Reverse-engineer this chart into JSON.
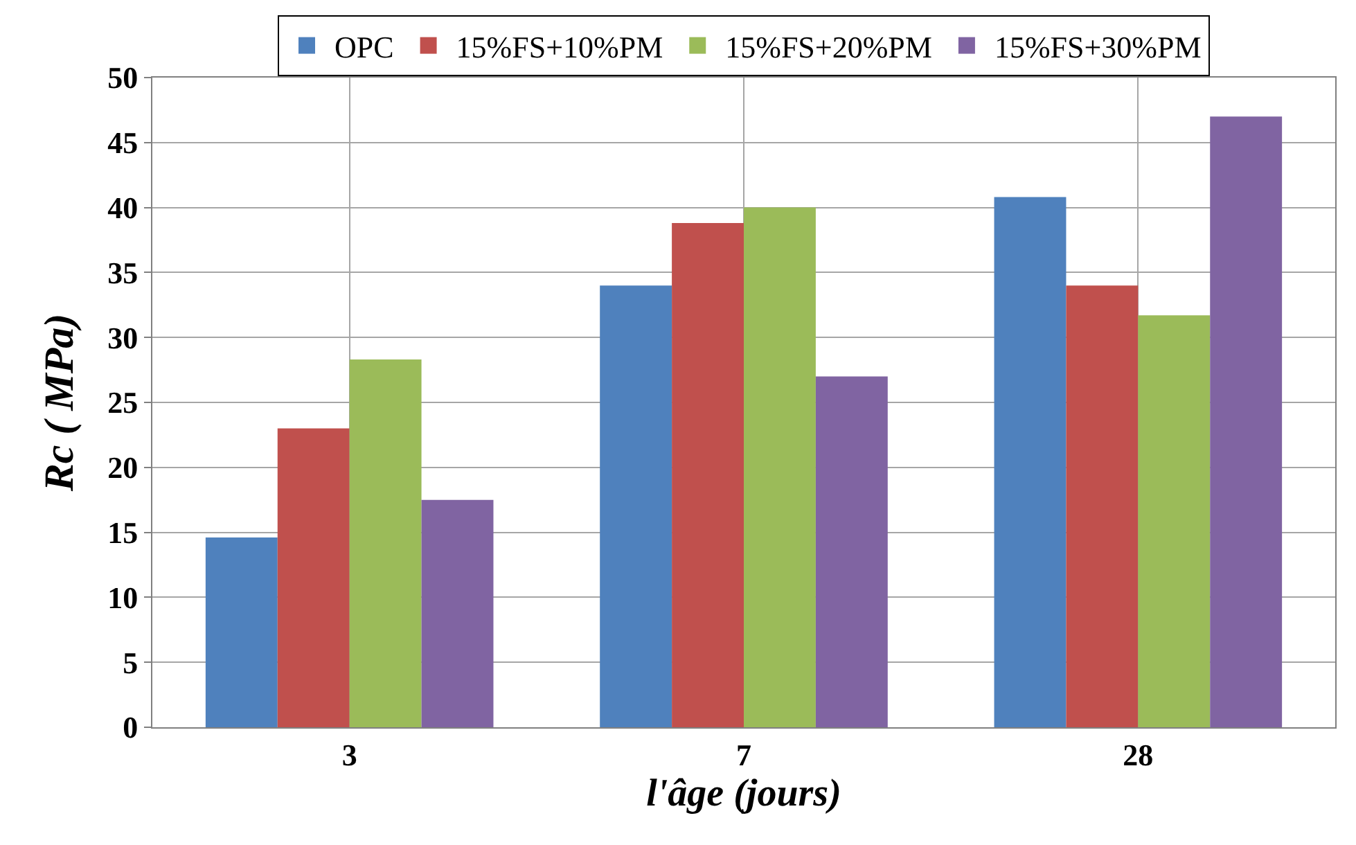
{
  "chart_data": {
    "type": "bar",
    "xlabel": "l'âge (jours)",
    "ylabel": "Rc ( MPa)",
    "categories": [
      "3",
      "7",
      "28"
    ],
    "series": [
      {
        "name": "OPC",
        "color": "#4f81bd",
        "values": [
          14.6,
          34,
          40.8
        ]
      },
      {
        "name": "15%FS+10%PM",
        "color": "#c0504d",
        "values": [
          23,
          38.8,
          34
        ]
      },
      {
        "name": "15%FS+20%PM",
        "color": "#9bbb59",
        "values": [
          28.3,
          40,
          31.7
        ]
      },
      {
        "name": "15%FS+30%PM",
        "color": "#8064a2",
        "values": [
          17.5,
          27,
          47
        ]
      }
    ],
    "ylim": [
      0,
      50
    ],
    "yticks": [
      0,
      5,
      10,
      15,
      20,
      25,
      30,
      35,
      40,
      45,
      50
    ],
    "grid": true,
    "legend": "top"
  }
}
